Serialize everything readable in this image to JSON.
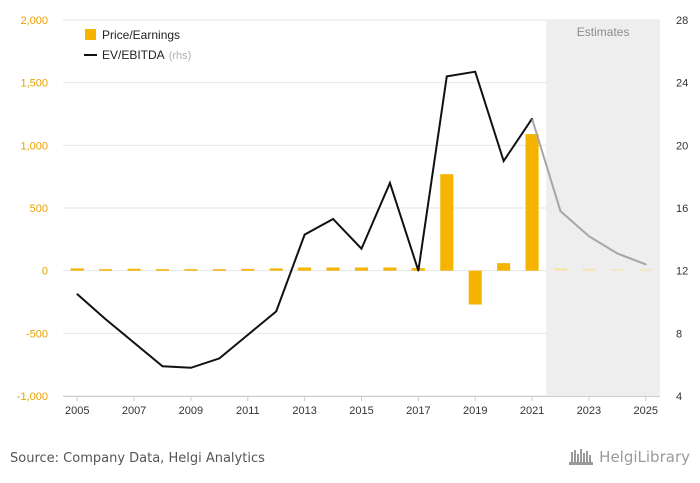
{
  "chart_data": {
    "type": "bar+line",
    "x": [
      2005,
      2006,
      2007,
      2008,
      2009,
      2010,
      2011,
      2012,
      2013,
      2014,
      2015,
      2016,
      2017,
      2018,
      2019,
      2020,
      2021,
      2022,
      2023,
      2024,
      2025
    ],
    "x_tick_labels": [
      "2005",
      "2007",
      "2009",
      "2011",
      "2013",
      "2015",
      "2017",
      "2019",
      "2021",
      "2023",
      "2025"
    ],
    "estimates_from": 2022,
    "estimates_label": "Estimates",
    "series": [
      {
        "name": "Price/Earnings",
        "type": "bar",
        "axis": "left",
        "color": "#f5b400",
        "estimate_color": "#f9e3b0",
        "values": [
          18,
          12,
          15,
          12,
          12,
          12,
          14,
          18,
          25,
          25,
          25,
          25,
          20,
          770,
          -270,
          60,
          1090,
          20,
          15,
          12,
          10
        ]
      },
      {
        "name": "EV/EBITDA",
        "name_suffix": "(rhs)",
        "type": "line",
        "axis": "right",
        "color": "#111111",
        "estimate_color": "#a6a6a6",
        "values": [
          10.5,
          8.9,
          7.4,
          5.9,
          5.8,
          6.4,
          7.9,
          9.4,
          14.3,
          15.3,
          13.4,
          17.6,
          12.0,
          24.4,
          24.7,
          19.0,
          21.7,
          15.8,
          14.2,
          13.1,
          12.4
        ]
      }
    ],
    "y_left": {
      "min": -1000,
      "max": 2000,
      "ticks": [
        -1000,
        -500,
        0,
        500,
        1000,
        1500,
        2000
      ],
      "tick_labels": [
        "-1,000",
        "-500",
        "0",
        "500",
        "1,000",
        "1,500",
        "2,000"
      ],
      "color": "#e8a200"
    },
    "y_right": {
      "min": 4,
      "max": 28,
      "ticks": [
        4,
        8,
        12,
        16,
        20,
        24,
        28
      ],
      "tick_labels": [
        "4",
        "8",
        "12",
        "16",
        "20",
        "24",
        "28"
      ]
    },
    "grid": true,
    "legend_position": "top-left"
  },
  "footer": {
    "source": "Source: Company Data, Helgi Analytics",
    "logo_text": "HelgiLibrary"
  }
}
